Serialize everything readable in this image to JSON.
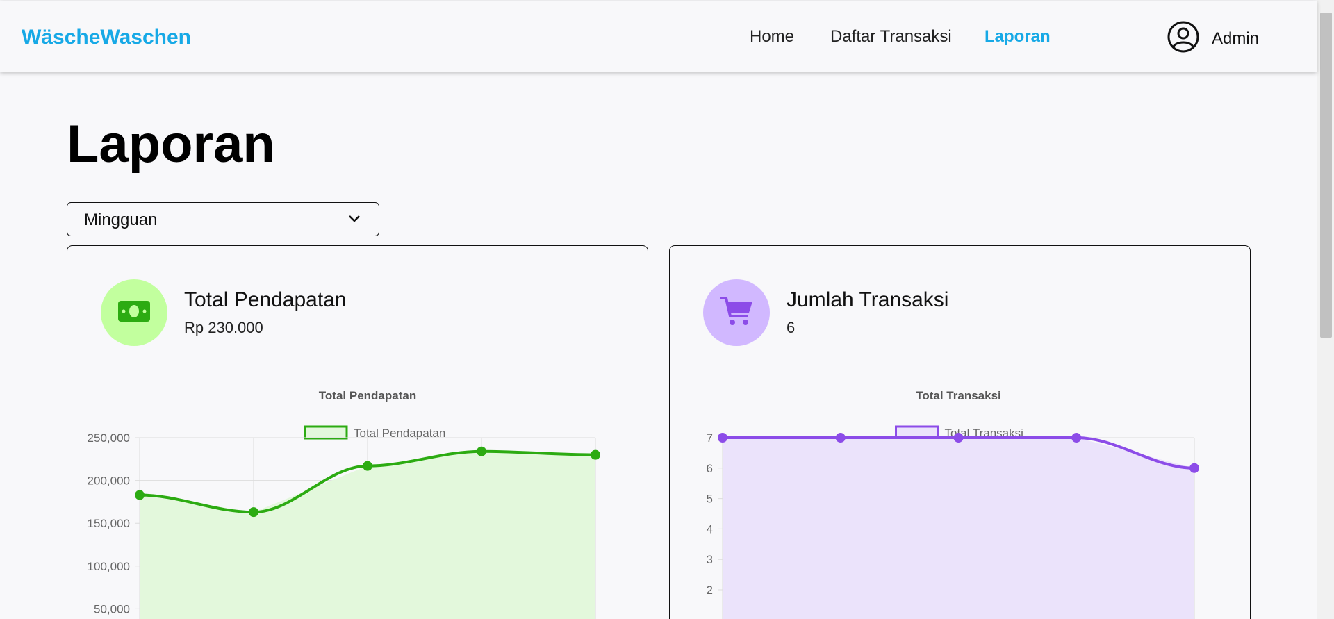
{
  "navbar": {
    "brand": "WäscheWaschen",
    "links": [
      {
        "label": "Home",
        "active": false
      },
      {
        "label": "Daftar Transaksi",
        "active": false
      },
      {
        "label": "Laporan",
        "active": true
      }
    ],
    "user_name": "Admin",
    "user_icon": "user-circle-icon"
  },
  "page": {
    "title": "Laporan",
    "period_select": {
      "value": "Mingguan"
    }
  },
  "cards": [
    {
      "label": "Total Pendapatan",
      "value": "Rp 230.000",
      "icon": "money-icon",
      "icon_bg": "#c2ff9e",
      "icon_color": "#2cab12"
    },
    {
      "label": "Jumlah Transaksi",
      "value": "6",
      "icon": "cart-icon",
      "icon_bg": "#d1b8ff",
      "icon_color": "#8c4ce8"
    }
  ],
  "chart_data": [
    {
      "type": "line",
      "title": "Total Pendapatan",
      "series": [
        {
          "name": "Total Pendapatan",
          "values": [
            183000,
            163000,
            217000,
            234000,
            230000
          ]
        }
      ],
      "y_ticks": [
        "250,000",
        "200,000",
        "150,000",
        "100,000",
        "50,000"
      ],
      "ylim": [
        0,
        250000
      ],
      "color": "#2cab12",
      "fill": "#e3f8dc",
      "grid": true,
      "legend": "top"
    },
    {
      "type": "line",
      "title": "Total Transaksi",
      "series": [
        {
          "name": "Total Transaksi",
          "values": [
            7,
            7,
            7,
            7,
            6
          ]
        }
      ],
      "y_ticks": [
        "7",
        "6",
        "5",
        "4",
        "3",
        "2"
      ],
      "ylim": [
        0,
        7
      ],
      "color": "#8c4ce8",
      "fill": "#ebe3fb",
      "grid": true,
      "legend": "top"
    }
  ]
}
